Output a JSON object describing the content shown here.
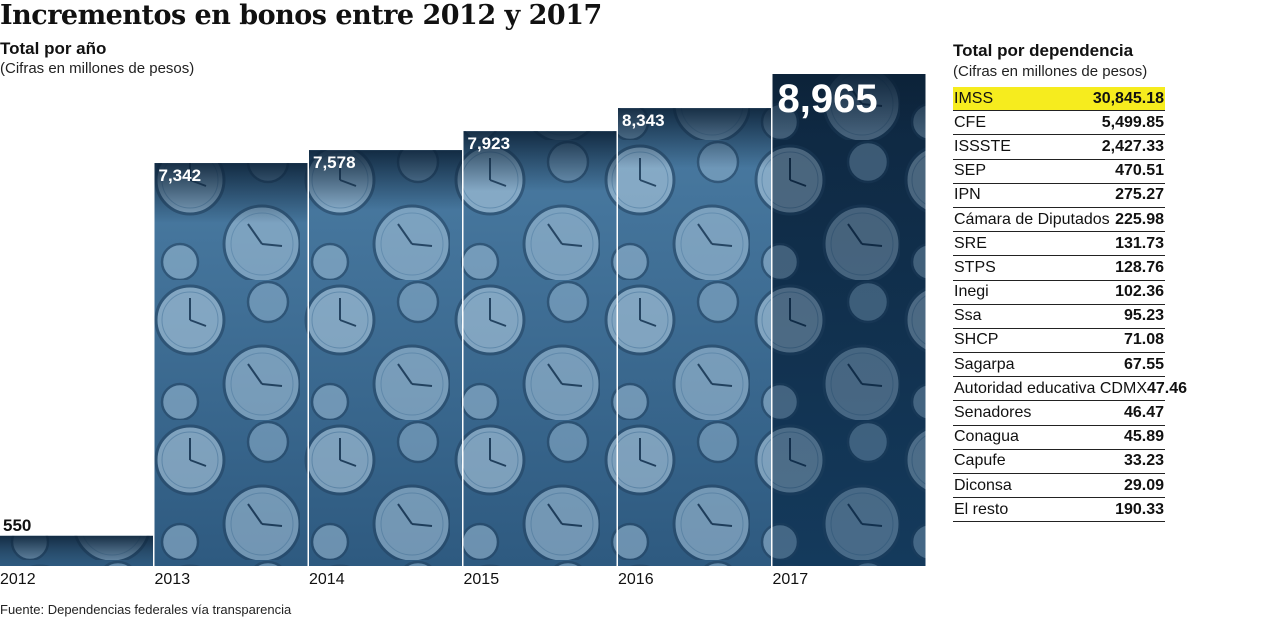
{
  "title": "Incrementos en bonos entre 2012 y 2017",
  "chart_data": {
    "type": "bar",
    "title": "Total por año",
    "subtitle": "(Cifras en millones de pesos)",
    "categories": [
      "2012",
      "2013",
      "2014",
      "2015",
      "2016",
      "2017"
    ],
    "values": [
      550,
      7342,
      7578,
      7923,
      8343,
      8965
    ],
    "value_labels": [
      "550",
      "7,342",
      "7,578",
      "7,923",
      "8,343",
      "8,965"
    ],
    "ylim": [
      0,
      8965
    ],
    "grid": false,
    "colors": {
      "bar": "#3f6f96",
      "highlight": "#0f2a47",
      "background": "#ffffff"
    }
  },
  "table": {
    "title": "Total por dependencia",
    "subtitle": "(Cifras en millones de pesos)",
    "highlight_color": "#f6ec1e",
    "rows": [
      {
        "name": "IMSS",
        "value": "30,845.18"
      },
      {
        "name": "CFE",
        "value": "5,499.85"
      },
      {
        "name": "ISSSTE",
        "value": "2,427.33"
      },
      {
        "name": "SEP",
        "value": "470.51"
      },
      {
        "name": "IPN",
        "value": "275.27"
      },
      {
        "name": "Cámara de Diputados",
        "value": "225.98"
      },
      {
        "name": "SRE",
        "value": "131.73"
      },
      {
        "name": "STPS",
        "value": "128.76"
      },
      {
        "name": "Inegi",
        "value": "102.36"
      },
      {
        "name": "Ssa",
        "value": "95.23"
      },
      {
        "name": "SHCP",
        "value": "71.08"
      },
      {
        "name": "Sagarpa",
        "value": "67.55"
      },
      {
        "name": "Autoridad educativa CDMX",
        "value": "47.46"
      },
      {
        "name": "Senadores",
        "value": "46.47"
      },
      {
        "name": "Conagua",
        "value": "45.89"
      },
      {
        "name": "Capufe",
        "value": "33.23"
      },
      {
        "name": "Diconsa",
        "value": "29.09"
      },
      {
        "name": "El resto",
        "value": "190.33"
      }
    ]
  },
  "source": "Fuente: Dependencias federales vía transparencia"
}
